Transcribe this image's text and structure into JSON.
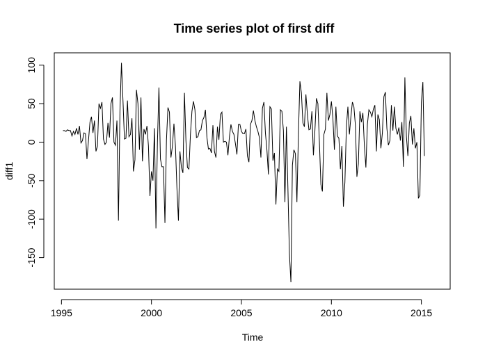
{
  "chart_data": {
    "type": "line",
    "title": "Time series plot of first diff",
    "xlabel": "Time",
    "ylabel": "diff1",
    "xlim": [
      1994.6,
      2016.6
    ],
    "ylim": [
      -191,
      116
    ],
    "grid": false,
    "legend": "none",
    "line_color": "#000000",
    "x_ticks": [
      1995,
      2000,
      2005,
      2010,
      2015
    ],
    "y_ticks": [
      -150,
      -100,
      -50,
      0,
      50,
      100
    ],
    "x_start": 1995.0833,
    "x_step": 0.0833333,
    "values": [
      15,
      15,
      14,
      16,
      15,
      15,
      8,
      14,
      10,
      18,
      10,
      21,
      -1,
      2,
      12,
      11,
      -22,
      2,
      26,
      33,
      12,
      28,
      -12,
      -5,
      50,
      44,
      52,
      4,
      -3,
      0,
      25,
      6,
      50,
      58,
      0,
      -4,
      28,
      -102,
      40,
      103,
      55,
      4,
      5,
      54,
      7,
      10,
      31,
      -38,
      -23,
      68,
      50,
      -10,
      58,
      -25,
      17,
      10,
      21,
      -5,
      -70,
      -38,
      -50,
      18,
      -112,
      0,
      71,
      -22,
      -32,
      -32,
      -105,
      2,
      45,
      39,
      -20,
      -5,
      24,
      -5,
      -60,
      -102,
      -12,
      -33,
      -40,
      64,
      2,
      -33,
      -35,
      10,
      40,
      53,
      42,
      6,
      7,
      15,
      16,
      28,
      32,
      42,
      6,
      -9,
      -8,
      -14,
      22,
      -12,
      -20,
      20,
      3,
      36,
      39,
      0,
      1,
      0,
      -17,
      7,
      23,
      14,
      10,
      -2,
      -16,
      23,
      23,
      14,
      11,
      11,
      17,
      -18,
      -26,
      23,
      28,
      41,
      28,
      20,
      14,
      6,
      -20,
      44,
      52,
      12,
      -10,
      -42,
      46,
      43,
      -24,
      -14,
      -81,
      -35,
      -38,
      42,
      40,
      15,
      -78,
      20,
      -60,
      -145,
      -182,
      -30,
      -10,
      -15,
      -78,
      10,
      79,
      64,
      25,
      20,
      62,
      36,
      16,
      17,
      40,
      -17,
      15,
      57,
      50,
      0,
      -55,
      -64,
      10,
      17,
      64,
      28,
      36,
      53,
      31,
      -10,
      46,
      8,
      5,
      -35,
      -5,
      -84,
      -52,
      20,
      46,
      10,
      33,
      52,
      46,
      22,
      -45,
      -28,
      40,
      26,
      38,
      -5,
      -33,
      23,
      42,
      39,
      33,
      43,
      48,
      -12,
      36,
      29,
      -8,
      12,
      59,
      65,
      18,
      -4,
      2,
      48,
      15,
      46,
      18,
      10,
      19,
      2,
      26,
      -32,
      84,
      8,
      -18,
      25,
      34,
      -3,
      18,
      -8,
      0,
      -73,
      -69,
      52,
      78,
      -18
    ]
  }
}
